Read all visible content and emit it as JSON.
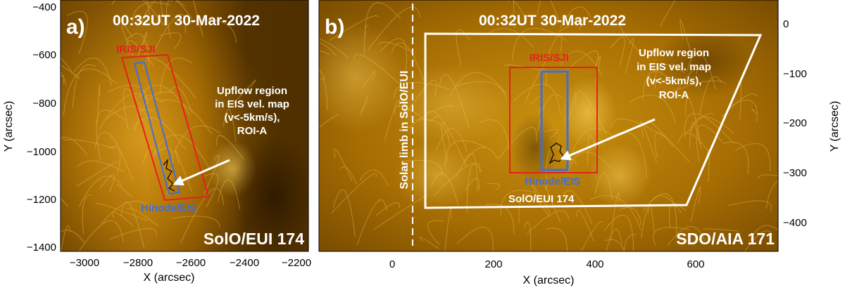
{
  "panel_a": {
    "label": "a)",
    "timestamp": "00:32UT 30-Mar-2022",
    "instrument": "SolO/EUI 174",
    "iris_label": "IRIS/SJI",
    "eis_label": "Hinode/EIS",
    "annotation": [
      "Upflow region",
      "in EIS vel. map",
      "(v<-5km/s),",
      "ROI-A"
    ],
    "x_axis_label": "X (arcsec)",
    "y_axis_label": "Y (arcsec)",
    "x_ticks": [
      "−3000",
      "−2800",
      "−2600",
      "−2400",
      "−2200"
    ],
    "y_ticks": [
      "−400",
      "−600",
      "−800",
      "−1000",
      "−1200",
      "−1400"
    ]
  },
  "panel_b": {
    "label": "b)",
    "timestamp": "00:32UT 30-Mar-2022",
    "instrument": "SDO/AIA 171",
    "iris_label": "IRIS/SJI",
    "eis_label": "Hinode/EIS",
    "eui_fov_label": "SolO/EUI 174",
    "limb_label": "Solar limb in SolO/EUI",
    "annotation": [
      "Upflow region",
      "in EIS vel. map",
      "(v<-5km/s),",
      "ROI-A"
    ],
    "x_axis_label": "X (arcsec)",
    "y_axis_label": "Y (arcsec)",
    "x_ticks": [
      "0",
      "200",
      "400",
      "600"
    ],
    "y_ticks": [
      "0",
      "−100",
      "−200",
      "−300",
      "−400"
    ]
  },
  "colors": {
    "iris_box": "#e8201c",
    "eis_box": "#3f6fd8",
    "annotation": "#ffffff",
    "colormap_dark": "#1a0e00",
    "colormap_bright": "#f5c640"
  }
}
